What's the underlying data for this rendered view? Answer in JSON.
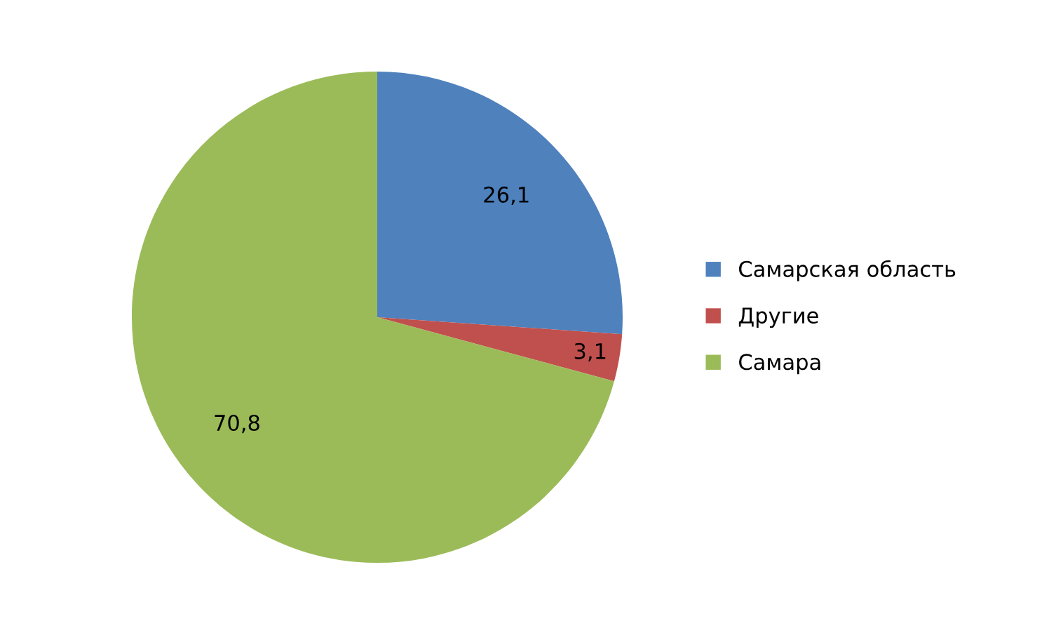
{
  "chart_data": {
    "type": "pie",
    "categories": [
      "Самарская область",
      "Другие",
      "Самара"
    ],
    "values": [
      26.1,
      3.1,
      70.8
    ],
    "value_labels": [
      "26,1",
      "3,1",
      "70,8"
    ],
    "colors": [
      "#4f81bd",
      "#c0504d",
      "#9bbb59"
    ],
    "legend": "right"
  }
}
